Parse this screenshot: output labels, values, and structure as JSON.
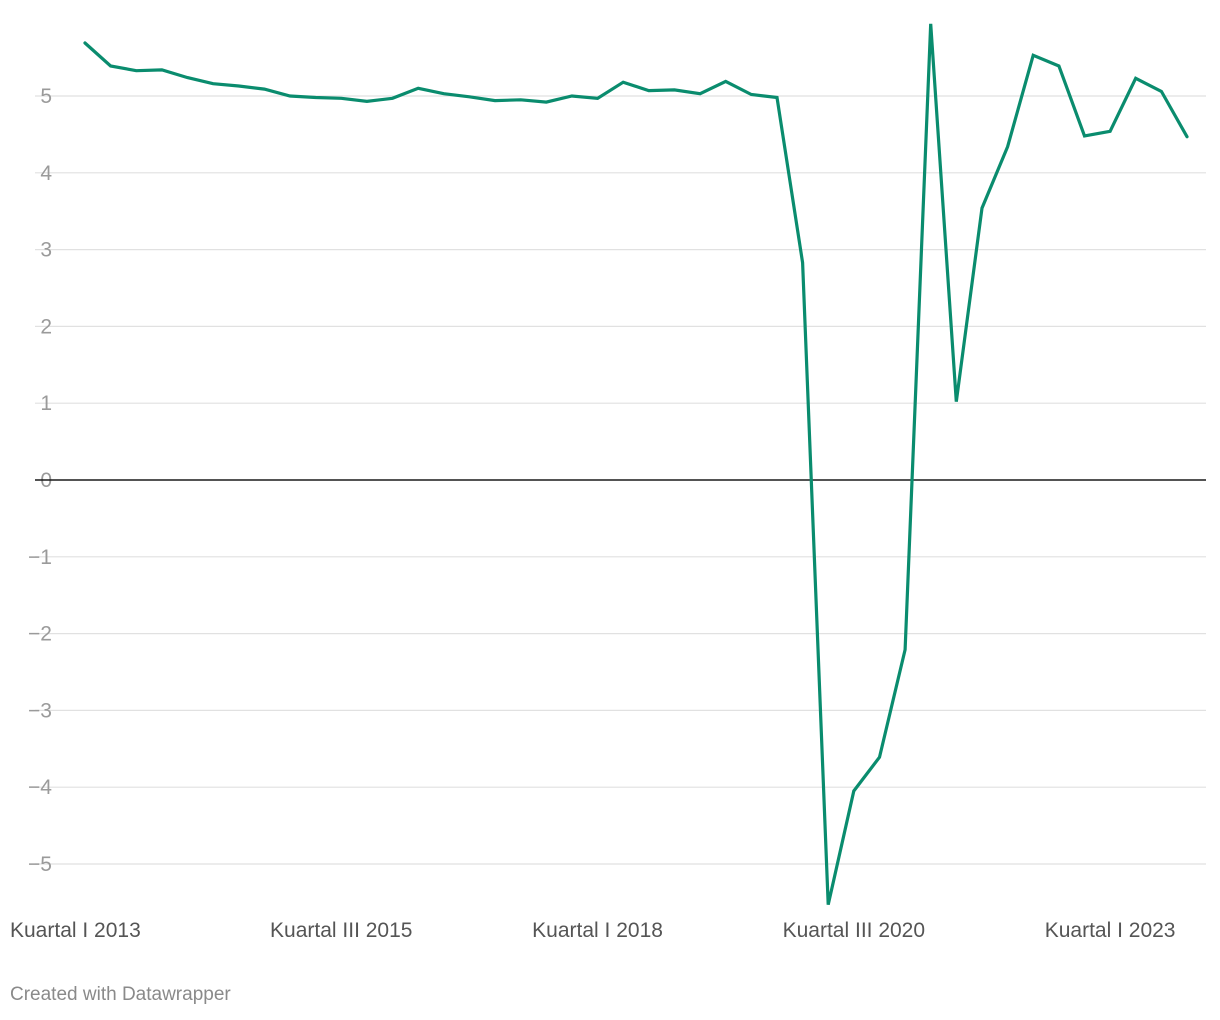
{
  "chart_data": {
    "type": "line",
    "title": "",
    "xlabel": "",
    "ylabel": "",
    "ylim": [
      -5.5,
      5.9
    ],
    "yticks": [
      5,
      4,
      3,
      2,
      1,
      0,
      -1,
      -2,
      -3,
      -4,
      -5
    ],
    "ytick_labels": [
      "5",
      "4",
      "3",
      "2",
      "1",
      "0",
      "−1",
      "−2",
      "−3",
      "−4",
      "−5"
    ],
    "xtick_labels": [
      {
        "label": "Kuartal I 2013",
        "index": 0
      },
      {
        "label": "Kuartal III 2015",
        "index": 10
      },
      {
        "label": "Kuartal I 2018",
        "index": 20
      },
      {
        "label": "Kuartal III 2020",
        "index": 30
      },
      {
        "label": "Kuartal I 2023",
        "index": 40
      }
    ],
    "grid": true,
    "zero_line": true,
    "series": [
      {
        "color": "#0a8c6e",
        "x": [
          "Kuartal I 2013",
          "Kuartal II 2013",
          "Kuartal III 2013",
          "Kuartal IV 2013",
          "Kuartal I 2014",
          "Kuartal II 2014",
          "Kuartal III 2014",
          "Kuartal IV 2014",
          "Kuartal I 2015",
          "Kuartal II 2015",
          "Kuartal III 2015",
          "Kuartal IV 2015",
          "Kuartal I 2016",
          "Kuartal II 2016",
          "Kuartal III 2016",
          "Kuartal IV 2016",
          "Kuartal I 2017",
          "Kuartal II 2017",
          "Kuartal III 2017",
          "Kuartal IV 2017",
          "Kuartal I 2018",
          "Kuartal II 2018",
          "Kuartal III 2018",
          "Kuartal IV 2018",
          "Kuartal I 2019",
          "Kuartal II 2019",
          "Kuartal III 2019",
          "Kuartal IV 2019",
          "Kuartal I 2020",
          "Kuartal II 2020",
          "Kuartal III 2020",
          "Kuartal IV 2020",
          "Kuartal I 2021",
          "Kuartal II 2021",
          "Kuartal III 2021",
          "Kuartal IV 2021",
          "Kuartal I 2022",
          "Kuartal II 2022",
          "Kuartal III 2022",
          "Kuartal IV 2022",
          "Kuartal I 2023",
          "Kuartal II 2023",
          "Kuartal III 2023",
          "Kuartal IV 2023"
        ],
        "values": [
          5.69,
          5.39,
          5.33,
          5.34,
          5.24,
          5.16,
          5.13,
          5.09,
          5.0,
          4.98,
          4.97,
          4.93,
          4.97,
          5.1,
          5.03,
          4.99,
          4.94,
          4.95,
          4.92,
          5.0,
          4.97,
          5.18,
          5.07,
          5.08,
          5.03,
          5.19,
          5.02,
          4.98,
          2.83,
          -5.53,
          -4.05,
          -3.61,
          -2.21,
          5.94,
          1.02,
          3.54,
          4.34,
          5.53,
          5.39,
          4.48,
          4.54,
          5.23,
          5.06,
          4.47
        ]
      }
    ]
  },
  "credit": "Created with Datawrapper"
}
